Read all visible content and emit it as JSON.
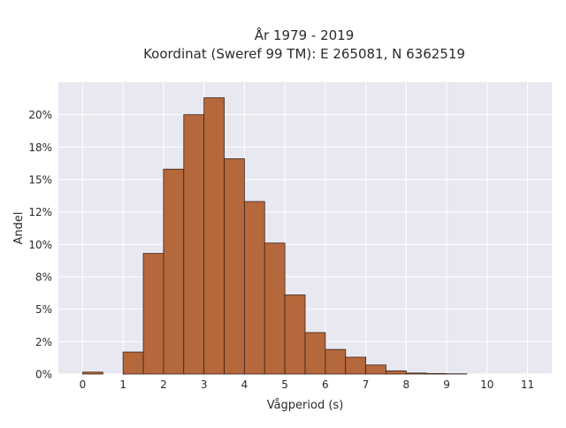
{
  "chart_data": {
    "type": "bar",
    "title": "År 1979 - 2019",
    "subtitle": "Koordinat (Sweref 99 TM): E 265081, N 6362519",
    "xlabel": "Vågperiod (s)",
    "ylabel": "Andel",
    "bin_width": 0.5,
    "bins_start": [
      0,
      0.5,
      1,
      1.5,
      2,
      2.5,
      3,
      3.5,
      4,
      4.5,
      5,
      5.5,
      6,
      6.5,
      7,
      7.5,
      8,
      8.5,
      9,
      9.5,
      10,
      10.5
    ],
    "values": [
      0.15,
      0.0,
      1.7,
      9.3,
      15.8,
      20.0,
      21.3,
      16.6,
      13.3,
      10.1,
      6.1,
      3.2,
      1.9,
      1.3,
      0.7,
      0.25,
      0.08,
      0.04,
      0.02,
      0.0,
      0.0,
      0.0
    ],
    "xlim": [
      -0.6,
      11.6
    ],
    "ylim": [
      0,
      22.5
    ],
    "xticks": [
      0,
      1,
      2,
      3,
      4,
      5,
      6,
      7,
      8,
      9,
      10,
      11
    ],
    "xtick_labels": [
      "0",
      "1",
      "2",
      "3",
      "4",
      "5",
      "6",
      "7",
      "8",
      "9",
      "10",
      "11"
    ],
    "yticks": [
      0,
      2.5,
      5,
      7.5,
      10,
      12.5,
      15,
      17.5,
      20
    ],
    "ytick_labels": [
      "0%",
      "2%",
      "5%",
      "8%",
      "10%",
      "12%",
      "15%",
      "18%",
      "20%"
    ],
    "grid": true,
    "colors": {
      "bar_fill": "#b5683b",
      "bar_stroke": "#3a2418",
      "plot_bg": "#e8e8f1",
      "grid": "#ffffff"
    }
  }
}
